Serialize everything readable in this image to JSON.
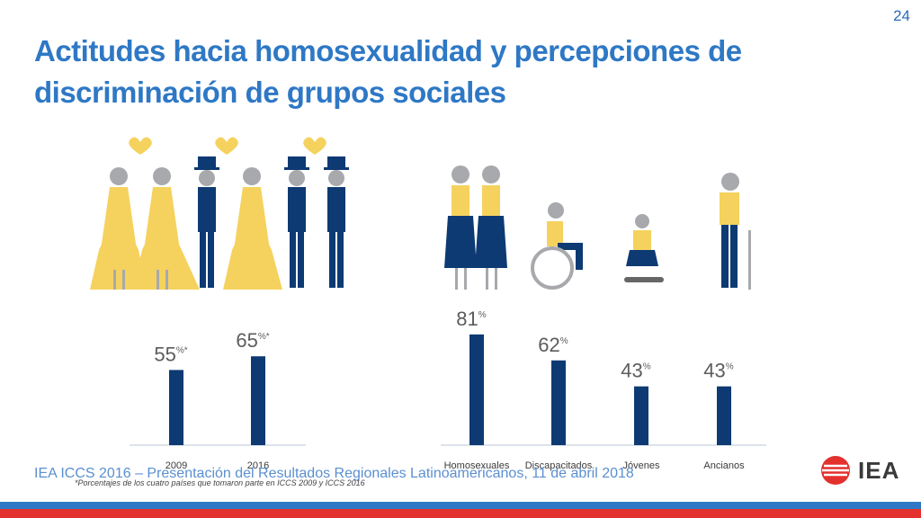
{
  "page_number": "24",
  "title_line1": "Actitudes hacia homosexualidad y percepciones de",
  "title_line2": "discriminación de grupos sociales",
  "footer_text": "IEA ICCS 2016 – Presentación del Resultados Regionales Latinoamericanos, 11 de abril 2018",
  "footnote": "*Porcentajes de los cuatro países que tomaron parte en ICCS 2009 y ICCS 2016",
  "logo_text": "IEA",
  "colors": {
    "bar": "#0d3a73",
    "title": "#2e78c5",
    "yellow": "#f5d25e",
    "gray": "#a7a9ac"
  },
  "chart_data": [
    {
      "type": "bar",
      "categories": [
        "2009",
        "2016"
      ],
      "values": [
        55,
        65
      ],
      "value_labels": [
        "55",
        "65"
      ],
      "value_suffix": "%*"
    },
    {
      "type": "bar",
      "categories": [
        "Homosexuales",
        "Discapacitados",
        "Jóvenes",
        "Ancianos"
      ],
      "values": [
        81,
        62,
        43,
        43
      ],
      "value_labels": [
        "81",
        "62",
        "43",
        "43"
      ],
      "value_suffix": "%"
    }
  ]
}
